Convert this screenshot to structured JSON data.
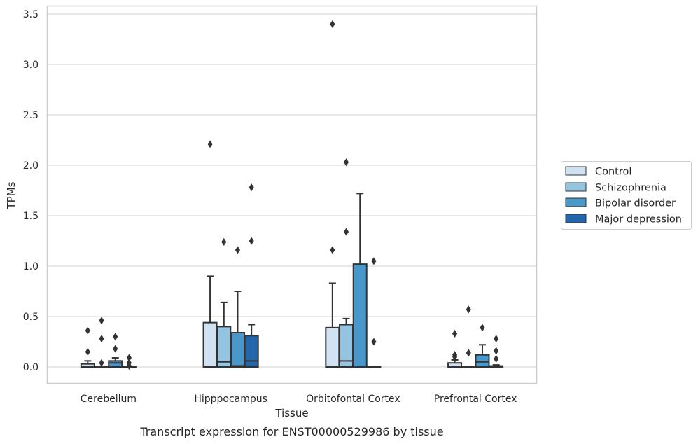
{
  "chart_data": {
    "type": "box",
    "xlabel": "Tissue",
    "ylabel": "TPMs",
    "ylim": [
      -0.16,
      3.57
    ],
    "y_ticks": [
      "0.0",
      "0.5",
      "1.0",
      "1.5",
      "2.0",
      "2.5",
      "3.0",
      "3.5"
    ],
    "grid": "horizontal",
    "legend_position": "right",
    "categories": [
      "Cerebellum",
      "Hipppocampus",
      "Orbitofontal Cortex",
      "Prefrontal Cortex"
    ],
    "series": [
      {
        "name": "Control",
        "color": "#d0e1f2",
        "boxes": [
          {
            "whisker_low": 0.0,
            "q1": 0.0,
            "median": 0.0,
            "q3": 0.03,
            "whisker_high": 0.06,
            "outliers": [
              0.15,
              0.36
            ]
          },
          {
            "whisker_low": 0.0,
            "q1": 0.0,
            "median": 0.0,
            "q3": 0.44,
            "whisker_high": 0.9,
            "outliers": [
              2.21
            ]
          },
          {
            "whisker_low": 0.0,
            "q1": 0.0,
            "median": 0.0,
            "q3": 0.39,
            "whisker_high": 0.83,
            "outliers": [
              1.16,
              3.4
            ]
          },
          {
            "whisker_low": 0.0,
            "q1": 0.0,
            "median": 0.0,
            "q3": 0.04,
            "whisker_high": 0.07,
            "outliers": [
              0.1,
              0.12,
              0.33
            ]
          }
        ]
      },
      {
        "name": "Schizophrenia",
        "color": "#94c4df",
        "boxes": [
          {
            "whisker_low": 0.0,
            "q1": 0.0,
            "median": 0.0,
            "q3": 0.0,
            "whisker_high": 0.0,
            "outliers": [
              0.04,
              0.28,
              0.46
            ]
          },
          {
            "whisker_low": 0.0,
            "q1": 0.0,
            "median": 0.05,
            "q3": 0.4,
            "whisker_high": 0.64,
            "outliers": [
              1.24
            ]
          },
          {
            "whisker_low": 0.0,
            "q1": 0.0,
            "median": 0.06,
            "q3": 0.42,
            "whisker_high": 0.48,
            "outliers": [
              1.34,
              2.03
            ]
          },
          {
            "whisker_low": 0.0,
            "q1": 0.0,
            "median": 0.0,
            "q3": 0.0,
            "whisker_high": 0.0,
            "outliers": [
              0.14,
              0.57
            ]
          }
        ]
      },
      {
        "name": "Bipolar disorder",
        "color": "#4a98c9",
        "boxes": [
          {
            "whisker_low": 0.0,
            "q1": 0.0,
            "median": 0.04,
            "q3": 0.06,
            "whisker_high": 0.09,
            "outliers": [
              0.18,
              0.3
            ]
          },
          {
            "whisker_low": 0.0,
            "q1": 0.0,
            "median": 0.01,
            "q3": 0.34,
            "whisker_high": 0.75,
            "outliers": [
              1.16
            ]
          },
          {
            "whisker_low": 0.0,
            "q1": 0.0,
            "median": 0.0,
            "q3": 1.02,
            "whisker_high": 1.72,
            "outliers": []
          },
          {
            "whisker_low": 0.0,
            "q1": 0.0,
            "median": 0.05,
            "q3": 0.12,
            "whisker_high": 0.22,
            "outliers": [
              0.39
            ]
          }
        ]
      },
      {
        "name": "Major depression",
        "color": "#2366ab",
        "boxes": [
          {
            "whisker_low": 0.0,
            "q1": 0.0,
            "median": 0.0,
            "q3": 0.0,
            "whisker_high": 0.0,
            "outliers": [
              0.01,
              0.04,
              0.09
            ]
          },
          {
            "whisker_low": 0.0,
            "q1": 0.0,
            "median": 0.06,
            "q3": 0.31,
            "whisker_high": 0.42,
            "outliers": [
              1.25,
              1.78
            ]
          },
          {
            "whisker_low": 0.0,
            "q1": 0.0,
            "median": 0.0,
            "q3": 0.0,
            "whisker_high": 0.0,
            "outliers": [
              0.25,
              1.05
            ]
          },
          {
            "whisker_low": 0.0,
            "q1": 0.0,
            "median": 0.0,
            "q3": 0.01,
            "whisker_high": 0.02,
            "outliers": [
              0.08,
              0.16,
              0.28
            ]
          }
        ]
      }
    ]
  },
  "caption": "Transcript expression for ENST00000529986 by tissue"
}
